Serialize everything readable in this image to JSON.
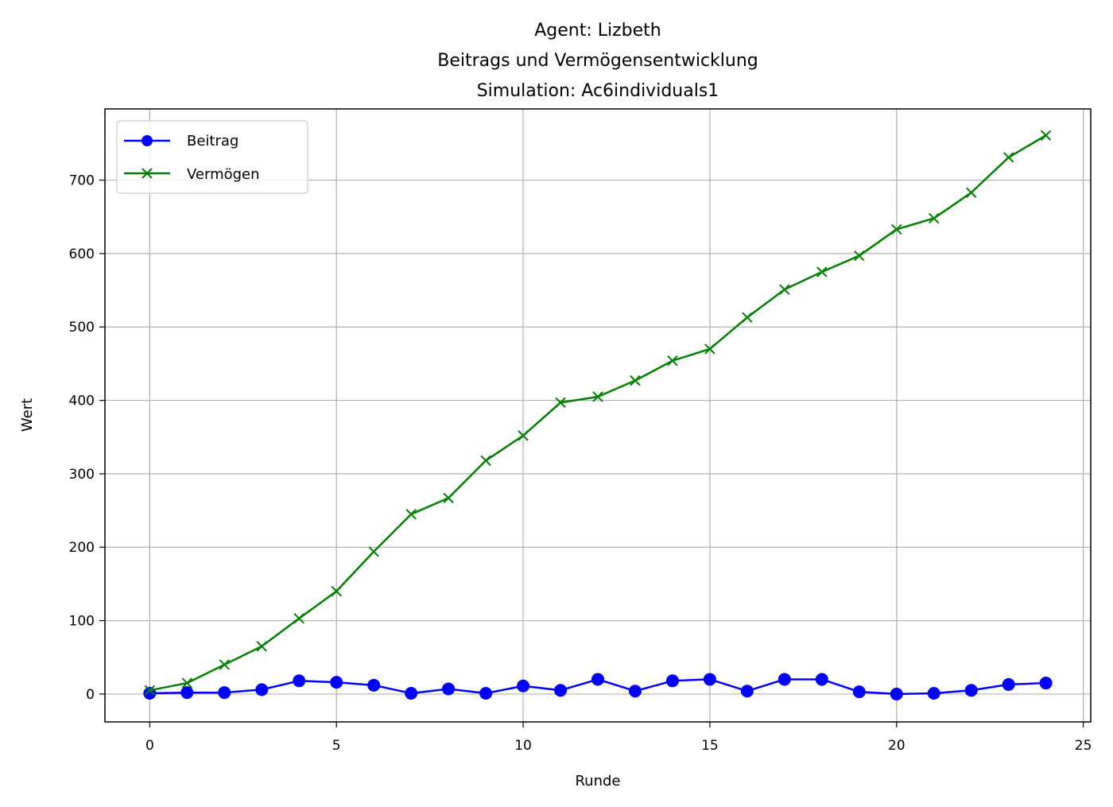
{
  "chart_data": {
    "type": "line",
    "title_lines": [
      "Agent: Lizbeth",
      "Beitrags und Vermögensentwicklung",
      "Simulation: Ac6individuals1"
    ],
    "xlabel": "Runde",
    "ylabel": "Wert",
    "xlim": [
      -1.2,
      25.2
    ],
    "ylim": [
      -38,
      797
    ],
    "xticks": [
      0,
      5,
      10,
      15,
      20,
      25
    ],
    "yticks": [
      0,
      100,
      200,
      300,
      400,
      500,
      600,
      700
    ],
    "grid": true,
    "legend_position": "upper-left",
    "x": [
      0,
      1,
      2,
      3,
      4,
      5,
      6,
      7,
      8,
      9,
      10,
      11,
      12,
      13,
      14,
      15,
      16,
      17,
      18,
      19,
      20,
      21,
      22,
      23,
      24
    ],
    "series": [
      {
        "name": "Beitrag",
        "color": "#0000ff",
        "marker": "circle",
        "values": [
          1,
          2,
          2,
          6,
          18,
          16,
          12,
          1,
          7,
          1,
          11,
          5,
          20,
          4,
          18,
          20,
          4,
          20,
          20,
          3,
          0,
          1,
          5,
          13,
          15
        ]
      },
      {
        "name": "Vermögen",
        "color": "#008000",
        "marker": "x",
        "values": [
          5,
          15,
          40,
          65,
          103,
          140,
          194,
          245,
          267,
          318,
          352,
          397,
          405,
          427,
          454,
          470,
          513,
          551,
          575,
          597,
          633,
          648,
          683,
          731,
          761
        ]
      }
    ]
  }
}
